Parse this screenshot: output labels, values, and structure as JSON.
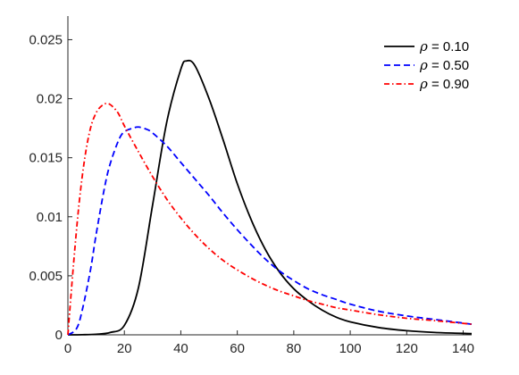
{
  "chart_data": {
    "type": "line",
    "title": "",
    "xlabel": "",
    "ylabel": "",
    "xlim": [
      0,
      143
    ],
    "ylim": [
      0,
      0.027
    ],
    "xticks": [
      0,
      20,
      40,
      60,
      80,
      100,
      120,
      140
    ],
    "yticks": [
      0,
      0.005,
      0.01,
      0.015,
      0.02,
      0.025
    ],
    "xtick_labels": [
      "0",
      "20",
      "40",
      "60",
      "80",
      "100",
      "120",
      "140"
    ],
    "ytick_labels": [
      "0",
      "0.005",
      "0.01",
      "0.015",
      "0.02",
      "0.025"
    ],
    "grid": false,
    "legend_position": "top-right",
    "series": [
      {
        "name": "ρ = 0.10",
        "symbol": "ρ",
        "value_text": " = 0.10",
        "color": "#000000",
        "line_style": "solid",
        "x": [
          0,
          5,
          10,
          15,
          20,
          25,
          30,
          35,
          40,
          42,
          45,
          50,
          55,
          60,
          65,
          70,
          75,
          80,
          85,
          90,
          95,
          100,
          110,
          120,
          130,
          143
        ],
        "y": [
          0,
          1e-05,
          5e-05,
          0.0002,
          0.0008,
          0.004,
          0.011,
          0.018,
          0.0225,
          0.0232,
          0.0228,
          0.02,
          0.0165,
          0.0128,
          0.0097,
          0.0072,
          0.0053,
          0.0039,
          0.0029,
          0.0021,
          0.0015,
          0.0011,
          0.00062,
          0.00035,
          0.0002,
          0.0001
        ]
      },
      {
        "name": "ρ = 0.50",
        "symbol": "ρ",
        "value_text": " = 0.50",
        "color": "#0000ff",
        "line_style": "dashed",
        "x": [
          0,
          3,
          5,
          8,
          10,
          13,
          15,
          18,
          20,
          23,
          25,
          28,
          30,
          35,
          40,
          45,
          50,
          55,
          60,
          65,
          70,
          75,
          80,
          85,
          90,
          95,
          100,
          110,
          120,
          130,
          143
        ],
        "y": [
          0,
          0.0005,
          0.002,
          0.0055,
          0.0085,
          0.0125,
          0.0145,
          0.0165,
          0.0172,
          0.0175,
          0.0176,
          0.0174,
          0.0171,
          0.016,
          0.0146,
          0.0132,
          0.0118,
          0.0103,
          0.0089,
          0.0076,
          0.0064,
          0.0054,
          0.0046,
          0.0039,
          0.0034,
          0.003,
          0.0026,
          0.002,
          0.0016,
          0.0013,
          0.0009
        ]
      },
      {
        "name": "ρ = 0.90",
        "symbol": "ρ",
        "value_text": " = 0.90",
        "color": "#ff0000",
        "line_style": "dash-dot",
        "x": [
          0,
          2,
          4,
          6,
          8,
          10,
          12,
          14,
          16,
          18,
          20,
          25,
          30,
          35,
          40,
          45,
          50,
          55,
          60,
          65,
          70,
          75,
          80,
          85,
          90,
          95,
          100,
          110,
          120,
          130,
          143
        ],
        "y": [
          0,
          0.006,
          0.0112,
          0.015,
          0.0175,
          0.0188,
          0.0194,
          0.0196,
          0.0193,
          0.0187,
          0.0177,
          0.0155,
          0.0134,
          0.0115,
          0.0099,
          0.0085,
          0.0073,
          0.0063,
          0.0055,
          0.0048,
          0.0042,
          0.0037,
          0.0033,
          0.0029,
          0.0026,
          0.0023,
          0.0021,
          0.0017,
          0.0014,
          0.0012,
          0.0009
        ]
      }
    ]
  }
}
